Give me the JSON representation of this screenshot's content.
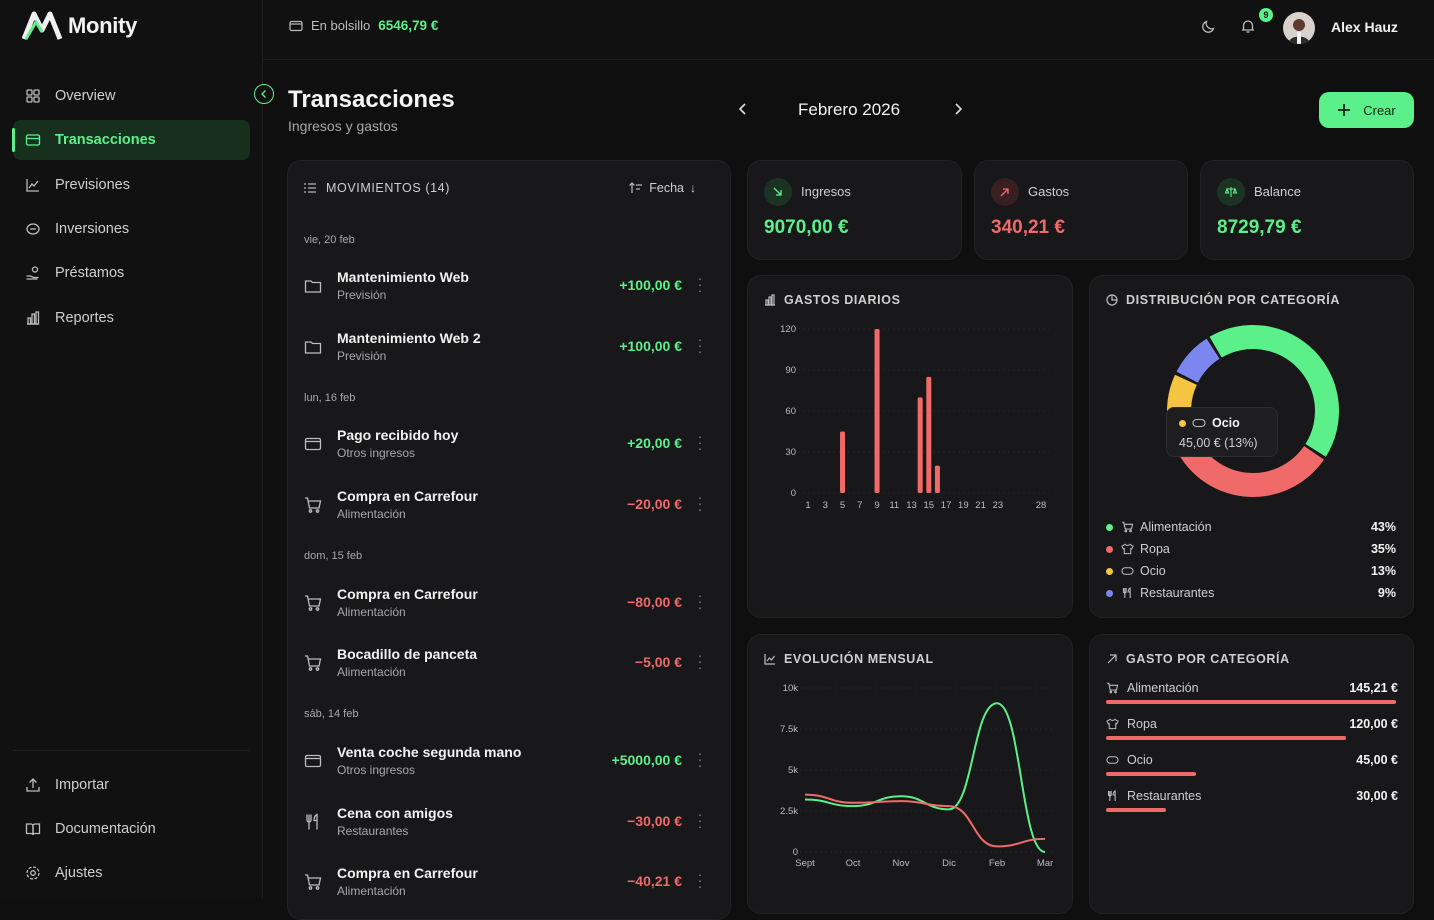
{
  "app": {
    "name": "Monity"
  },
  "sidebar": {
    "items": [
      {
        "label": "Overview",
        "icon": "grid-icon"
      },
      {
        "label": "Transacciones",
        "icon": "card-icon",
        "active": true
      },
      {
        "label": "Previsiones",
        "icon": "trend-icon"
      },
      {
        "label": "Inversiones",
        "icon": "coins-icon"
      },
      {
        "label": "Préstamos",
        "icon": "hand-coins-icon"
      },
      {
        "label": "Reportes",
        "icon": "bar-chart-icon"
      }
    ],
    "bottom": [
      {
        "label": "Importar",
        "icon": "upload-icon"
      },
      {
        "label": "Documentación",
        "icon": "book-icon"
      },
      {
        "label": "Ajustes",
        "icon": "settings-icon"
      }
    ]
  },
  "topbar": {
    "pocket_label": "En bolsillo",
    "pocket_amount": "6546,79 €",
    "notifications": "9",
    "user": "Alex Hauz"
  },
  "page": {
    "title": "Transacciones",
    "subtitle": "Ingresos y gastos",
    "month": "Febrero 2026",
    "create_label": "Crear"
  },
  "movements": {
    "header": "MOVIMIENTOS (14)",
    "sort_label": "Fecha",
    "days": [
      "vie, 20 feb",
      "lun, 16 feb",
      "dom, 15 feb",
      "sáb, 14 feb"
    ],
    "items": [
      {
        "name": "Mantenimiento Web",
        "category": "Previsión",
        "amount": "+100,00 €",
        "type": "pos",
        "icon": "folder-icon"
      },
      {
        "name": "Mantenimiento Web 2",
        "category": "Previsión",
        "amount": "+100,00 €",
        "type": "pos",
        "icon": "folder-icon"
      },
      {
        "name": "Pago recibido hoy",
        "category": "Otros ingresos",
        "amount": "+20,00 €",
        "type": "pos",
        "icon": "wallet-icon"
      },
      {
        "name": "Compra en Carrefour",
        "category": "Alimentación",
        "amount": "−20,00 €",
        "type": "neg",
        "icon": "cart-icon"
      },
      {
        "name": "Compra en Carrefour",
        "category": "Alimentación",
        "amount": "−80,00 €",
        "type": "neg",
        "icon": "cart-icon"
      },
      {
        "name": "Bocadillo de panceta",
        "category": "Alimentación",
        "amount": "−5,00 €",
        "type": "neg",
        "icon": "cart-icon"
      },
      {
        "name": "Venta coche segunda mano",
        "category": "Otros ingresos",
        "amount": "+5000,00 €",
        "type": "pos",
        "icon": "wallet-icon"
      },
      {
        "name": "Cena con amigos",
        "category": "Restaurantes",
        "amount": "−30,00 €",
        "type": "neg",
        "icon": "utensils-icon"
      },
      {
        "name": "Compra en Carrefour",
        "category": "Alimentación",
        "amount": "−40,21 €",
        "type": "neg",
        "icon": "cart-icon"
      }
    ]
  },
  "stats": {
    "income": {
      "label": "Ingresos",
      "value": "9070,00 €"
    },
    "expenses": {
      "label": "Gastos",
      "value": "340,21 €"
    },
    "balance": {
      "label": "Balance",
      "value": "8729,79 €"
    }
  },
  "daily": {
    "title": "GASTOS DIARIOS"
  },
  "distribution": {
    "title": "DISTRIBUCIÓN POR CATEGORÍA",
    "tooltip_label": "Ocio",
    "tooltip_value": "45,00 € (13%)",
    "legend": [
      {
        "label": "Alimentación",
        "pct": "43%",
        "color": "#5cf08a",
        "icon": "cart-icon"
      },
      {
        "label": "Ropa",
        "pct": "35%",
        "color": "#f06a6a",
        "icon": "shirt-icon"
      },
      {
        "label": "Ocio",
        "pct": "13%",
        "color": "#f5c542",
        "icon": "gamepad-icon"
      },
      {
        "label": "Restaurantes",
        "pct": "9%",
        "color": "#7b86f0",
        "icon": "utensils-icon"
      }
    ]
  },
  "monthly": {
    "title": "EVOLUCIÓN MENSUAL"
  },
  "by_category": {
    "title": "GASTO POR CATEGORÍA",
    "items": [
      {
        "label": "Alimentación",
        "value": "145,21 €",
        "amount": 145.21,
        "icon": "cart-icon"
      },
      {
        "label": "Ropa",
        "value": "120,00 €",
        "amount": 120.0,
        "icon": "shirt-icon"
      },
      {
        "label": "Ocio",
        "value": "45,00 €",
        "amount": 45.0,
        "icon": "gamepad-icon"
      },
      {
        "label": "Restaurantes",
        "value": "30,00 €",
        "amount": 30.0,
        "icon": "utensils-icon"
      }
    ]
  },
  "chart_data": [
    {
      "type": "bar",
      "title": "GASTOS DIARIOS",
      "x_ticks": [
        "1",
        "3",
        "5",
        "7",
        "9",
        "11",
        "13",
        "15",
        "17",
        "19",
        "21",
        "23",
        "28"
      ],
      "y_ticks": [
        "0",
        "30",
        "60",
        "90",
        "120"
      ],
      "ylim": [
        0,
        120
      ],
      "xlim": [
        1,
        28
      ],
      "color": "#f06a6a",
      "x": [
        5,
        9,
        14,
        15,
        16
      ],
      "values": [
        45,
        120,
        70,
        85,
        20
      ]
    },
    {
      "type": "pie",
      "title": "DISTRIBUCIÓN POR CATEGORÍA",
      "categories": [
        "Alimentación",
        "Ropa",
        "Ocio",
        "Restaurantes"
      ],
      "values": [
        43,
        35,
        13,
        9
      ],
      "colors": [
        "#5cf08a",
        "#f06a6a",
        "#f5c542",
        "#7b86f0"
      ]
    },
    {
      "type": "line",
      "title": "EVOLUCIÓN MENSUAL",
      "categories": [
        "Sept",
        "Oct",
        "Nov",
        "Dic",
        "Feb",
        "Mar"
      ],
      "y_ticks": [
        "0",
        "2.5k",
        "5k",
        "7.5k",
        "10k"
      ],
      "ylim": [
        0,
        10000
      ],
      "series": [
        {
          "color": "#5cf08a",
          "values": [
            3200,
            2800,
            3400,
            2600,
            9070,
            0
          ]
        },
        {
          "color": "#f06a6a",
          "values": [
            3500,
            3000,
            3100,
            2800,
            340,
            800
          ]
        }
      ]
    }
  ]
}
